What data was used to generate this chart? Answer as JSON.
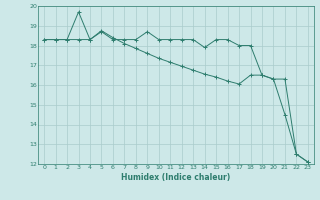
{
  "xlabel": "Humidex (Indice chaleur)",
  "background_color": "#cde8e8",
  "grid_color": "#aacccc",
  "line_color": "#2e7d6e",
  "spine_color": "#2e7d6e",
  "xlim": [
    -0.5,
    23.5
  ],
  "ylim": [
    12,
    20
  ],
  "xticks": [
    0,
    1,
    2,
    3,
    4,
    5,
    6,
    7,
    8,
    9,
    10,
    11,
    12,
    13,
    14,
    15,
    16,
    17,
    18,
    19,
    20,
    21,
    22,
    23
  ],
  "yticks": [
    12,
    13,
    14,
    15,
    16,
    17,
    18,
    19,
    20
  ],
  "series1_x": [
    0,
    1,
    2,
    3,
    4,
    5,
    6,
    7,
    8,
    9,
    10,
    11,
    12,
    13,
    14,
    15,
    16,
    17,
    18,
    19,
    20,
    21,
    22,
    23
  ],
  "series1_y": [
    18.3,
    18.3,
    18.3,
    19.7,
    18.3,
    18.7,
    18.3,
    18.3,
    18.3,
    18.7,
    18.3,
    18.3,
    18.3,
    18.3,
    17.9,
    18.3,
    18.3,
    18.0,
    18.0,
    16.5,
    16.3,
    14.5,
    12.5,
    12.1
  ],
  "series2_x": [
    0,
    1,
    2,
    3,
    4,
    5,
    6,
    7,
    8,
    9,
    10,
    11,
    12,
    13,
    14,
    15,
    16,
    17,
    18,
    19,
    20,
    21,
    22,
    23
  ],
  "series2_y": [
    18.3,
    18.3,
    18.3,
    18.3,
    18.3,
    18.75,
    18.4,
    18.1,
    17.85,
    17.6,
    17.35,
    17.15,
    16.95,
    16.75,
    16.55,
    16.4,
    16.2,
    16.05,
    16.5,
    16.5,
    16.3,
    16.3,
    12.5,
    12.1
  ]
}
